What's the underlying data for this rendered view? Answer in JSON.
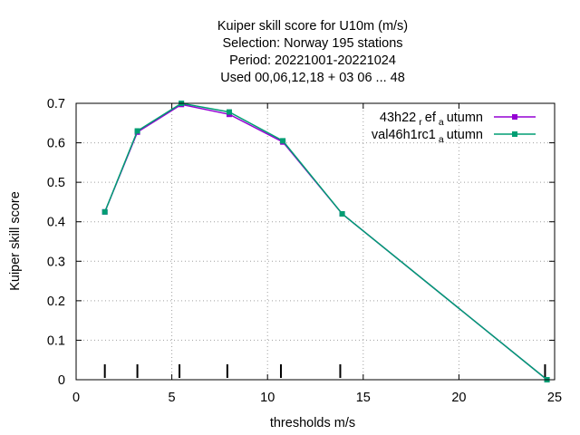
{
  "chart_data": {
    "type": "line",
    "title_lines": [
      "Kuiper skill score  for U10m (m/s)",
      "Selection: Norway    195 stations",
      "Period: 20221001-20221024",
      "Used  00,06,12,18  + 03 06 ... 48"
    ],
    "xlabel": "thresholds m/s",
    "ylabel": "Kuiper skill score",
    "xlim": [
      0,
      25
    ],
    "ylim": [
      0,
      0.7
    ],
    "xticks": [
      "0",
      "5",
      "10",
      "15",
      "20",
      "25"
    ],
    "yticks": [
      "0",
      "0.1",
      "0.2",
      "0.3",
      "0.4",
      "0.5",
      "0.6",
      "0.7"
    ],
    "threshold_markers": [
      1.5,
      3.2,
      5.4,
      7.9,
      10.7,
      13.8,
      24.5
    ],
    "legend_position": "top-right",
    "grid": true,
    "series": [
      {
        "name": {
          "main": "43h22",
          "sub1": "r",
          "mid": "ef",
          "sub2": "a",
          "tail": "utumn"
        },
        "color": "#9400d3",
        "x": [
          1.5,
          3.2,
          5.5,
          8.0,
          10.8,
          13.9,
          24.6
        ],
        "y": [
          0.425,
          0.627,
          0.697,
          0.672,
          0.602,
          0.42,
          0.0
        ]
      },
      {
        "name": {
          "main": "val46h1rc1",
          "sub2": "a",
          "tail": "utumn"
        },
        "color": "#009e73",
        "x": [
          1.5,
          3.2,
          5.5,
          8.0,
          10.8,
          13.9,
          24.6
        ],
        "y": [
          0.425,
          0.63,
          0.7,
          0.678,
          0.605,
          0.42,
          0.0
        ]
      }
    ]
  }
}
